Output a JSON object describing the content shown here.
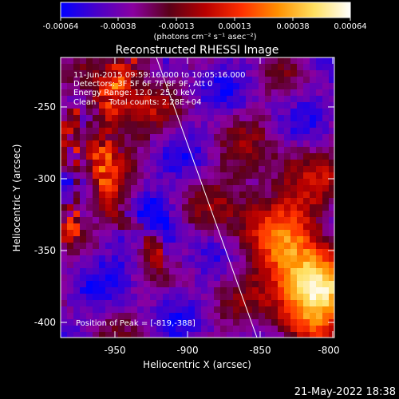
{
  "colorbar": {
    "tick_labels": [
      "-0.00064",
      "-0.00038",
      "-0.00013",
      "0.00013",
      "0.00038",
      "0.00064"
    ],
    "units": "(photons cm⁻² s⁻¹ asec⁻²)",
    "stops": [
      "#0000ff",
      "#4a00c8",
      "#8a00a0",
      "#5a0018",
      "#b80000",
      "#ff3000",
      "#ff9000",
      "#ffe060",
      "#ffffff"
    ]
  },
  "plot": {
    "title": "Reconstructed RHESSI Image",
    "info_lines": [
      "11-Jun-2015 09:59:16.000 to 10:05:16.000",
      "Detectors: 3F 5F 6F 7F 8F 9F, Att 0",
      "Energy Range: 12.0 - 25.0 keV",
      "Clean     Total counts: 2.28E+04"
    ],
    "peak_label": "Position of Peak = [-819,-388]",
    "xlabel": "Heliocentric X (arcsec)",
    "ylabel": "Heliocentric Y (arcsec)",
    "x_ticks": [
      "-950",
      "-900",
      "-850",
      "-800"
    ],
    "y_ticks": [
      "-250",
      "-300",
      "-350",
      "-400"
    ]
  },
  "footer": {
    "date": "21-May-2022 18:38"
  }
}
